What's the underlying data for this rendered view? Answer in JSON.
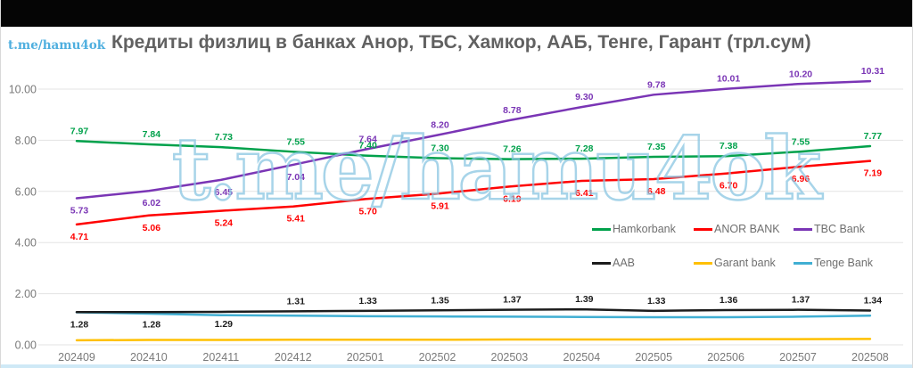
{
  "watermark": {
    "text": "t.me/hamu4ok"
  },
  "colors": {
    "background": "#ffffff",
    "top_bar": "#050505",
    "bottom_strip": "#cfe9f6",
    "title_text": "#616161",
    "axis_text": "#7a7a7a",
    "gridline": "#e3e3e3",
    "watermark_blue": "#4fafdf",
    "hamkorbank_green": "#00A14B",
    "anor_red": "#FF0000",
    "tbc_purple": "#7A35B5",
    "aab_black": "#1C1C1C",
    "garant_yellow": "#FFC000",
    "tenge_blue": "#41AFD3"
  },
  "chart_data": {
    "type": "line",
    "title": "Кредиты физлиц в банках Анор, ТБС, Хамкор, ААБ, Тенге, Гарант (трл.сум)",
    "xlabel": "",
    "ylabel": "",
    "ylim": [
      0,
      10.8
    ],
    "grid": true,
    "legend_position": "center-right, two rows",
    "categories": [
      "202409",
      "202410",
      "202411",
      "202412",
      "202501",
      "202502",
      "202503",
      "202504",
      "202505",
      "202506",
      "202507",
      "202508"
    ],
    "y_ticks": [
      "0.00",
      "2.00",
      "4.00",
      "6.00",
      "8.00",
      "10.00"
    ],
    "series": [
      {
        "name": "Hamkorbank",
        "color": "#00A14B",
        "zorder": 4,
        "values": [
          7.97,
          7.84,
          7.73,
          7.55,
          7.4,
          7.3,
          7.26,
          7.28,
          7.35,
          7.38,
          7.55,
          7.77
        ],
        "labels_shown": true,
        "label_sides": [
          "a",
          "a",
          "a",
          "a",
          "a",
          "a",
          "a",
          "a",
          "a",
          "a",
          "a",
          "a"
        ]
      },
      {
        "name": "ANOR BANK",
        "color": "#FF0000",
        "zorder": 5,
        "values": [
          4.71,
          5.06,
          5.24,
          5.41,
          5.7,
          5.91,
          6.19,
          6.41,
          6.48,
          6.7,
          6.96,
          7.19
        ],
        "labels_shown": true,
        "label_sides": [
          "b",
          "b",
          "b",
          "b",
          "b",
          "b",
          "b",
          "b",
          "b",
          "b",
          "b",
          "b"
        ]
      },
      {
        "name": "TBC Bank",
        "color": "#7A35B5",
        "zorder": 6,
        "values": [
          5.73,
          6.02,
          6.45,
          7.04,
          7.64,
          8.2,
          8.78,
          9.3,
          9.78,
          10.01,
          10.2,
          10.31
        ],
        "labels_shown": true,
        "label_sides": [
          "b",
          "b",
          "b",
          "b",
          "a",
          "a",
          "a",
          "a",
          "a",
          "a",
          "a",
          "a"
        ]
      },
      {
        "name": "AAB",
        "color": "#1C1C1C",
        "zorder": 2,
        "values": [
          1.28,
          1.28,
          1.29,
          1.31,
          1.33,
          1.35,
          1.37,
          1.39,
          1.33,
          1.36,
          1.37,
          1.34
        ],
        "labels_shown": true,
        "label_sides": [
          "b",
          "b",
          "b",
          "a",
          "a",
          "a",
          "a",
          "a",
          "a",
          "a",
          "a",
          "a"
        ]
      },
      {
        "name": "Garant bank",
        "color": "#FFC000",
        "zorder": 3,
        "values": [
          0.18,
          0.19,
          0.19,
          0.2,
          0.2,
          0.2,
          0.21,
          0.21,
          0.21,
          0.22,
          0.22,
          0.23
        ],
        "estimated": true,
        "labels_shown": false,
        "label_sides": null
      },
      {
        "name": "Tenge Bank",
        "color": "#41AFD3",
        "zorder": 1,
        "values": [
          1.27,
          1.22,
          1.16,
          1.14,
          1.12,
          1.11,
          1.1,
          1.09,
          1.08,
          1.08,
          1.1,
          1.14
        ],
        "estimated": true,
        "labels_shown": false,
        "label_sides": null
      }
    ],
    "legend_rows": [
      [
        "Hamkorbank",
        "ANOR BANK",
        "TBC Bank"
      ],
      [
        "AAB",
        "Garant bank",
        "Tenge Bank"
      ]
    ]
  }
}
